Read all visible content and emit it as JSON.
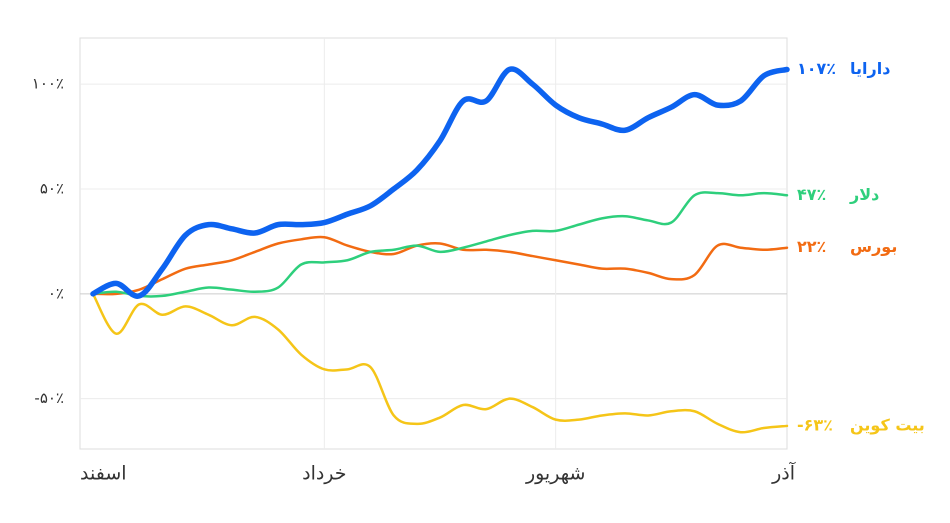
{
  "chart_data": {
    "type": "line",
    "categories": [
      "اسفند",
      null,
      null,
      null,
      null,
      null,
      null,
      null,
      null,
      null,
      "خرداد",
      null,
      null,
      null,
      null,
      null,
      null,
      null,
      null,
      null,
      "شهریور",
      null,
      null,
      null,
      null,
      null,
      null,
      null,
      null,
      null,
      "آذر"
    ],
    "series": [
      {
        "name": "دارایا",
        "color": "#0d63f0",
        "values": [
          0,
          5,
          -1,
          12,
          28,
          33,
          31,
          29,
          33,
          33,
          34,
          38,
          42,
          50,
          59,
          73,
          92,
          92,
          107,
          100,
          90,
          84,
          81,
          78,
          84,
          89,
          95,
          90,
          92,
          104,
          107
        ],
        "value_labels": [
          null,
          null,
          null,
          null,
          null,
          null,
          null,
          null,
          null,
          null,
          null,
          null,
          null,
          null,
          null,
          null,
          null,
          null,
          null,
          null,
          null,
          null,
          null,
          null,
          null,
          null,
          null,
          null,
          null,
          null,
          "۱۰۷٪"
        ]
      },
      {
        "name": "دلار",
        "color": "#2ecf7c",
        "values": [
          0,
          1,
          -1,
          -1,
          1,
          3,
          2,
          1,
          3,
          14,
          15,
          16,
          20,
          21,
          23,
          20,
          22,
          25,
          28,
          30,
          30,
          33,
          36,
          37,
          35,
          34,
          47,
          48,
          47,
          48,
          47
        ],
        "value_labels": [
          null,
          null,
          null,
          null,
          null,
          null,
          null,
          null,
          null,
          null,
          null,
          null,
          null,
          null,
          null,
          null,
          null,
          null,
          null,
          null,
          null,
          null,
          null,
          null,
          null,
          null,
          null,
          null,
          null,
          null,
          "۴۷٪"
        ]
      },
      {
        "name": "بورس",
        "color": "#f26b12",
        "values": [
          0,
          0,
          2,
          7,
          12,
          14,
          16,
          20,
          24,
          26,
          27,
          23,
          20,
          19,
          23,
          24,
          21,
          21,
          20,
          18,
          16,
          14,
          12,
          12,
          10,
          7,
          9,
          23,
          22,
          21,
          22
        ],
        "value_labels": [
          null,
          null,
          null,
          null,
          null,
          null,
          null,
          null,
          null,
          null,
          null,
          null,
          null,
          null,
          null,
          null,
          null,
          null,
          null,
          null,
          null,
          null,
          null,
          null,
          null,
          null,
          null,
          null,
          null,
          null,
          "۲۲٪"
        ]
      },
      {
        "name": "بیت کوین",
        "color": "#f5c518",
        "values": [
          0,
          -19,
          -5,
          -10,
          -6,
          -10,
          -15,
          -11,
          -17,
          -29,
          -36,
          -36,
          -35,
          -58,
          -62,
          -59,
          -53,
          -55,
          -50,
          -54,
          -60,
          -60,
          -58,
          -57,
          -58,
          -56,
          -56,
          -62,
          -66,
          -64,
          -63
        ],
        "value_labels": [
          null,
          null,
          null,
          null,
          null,
          null,
          null,
          null,
          null,
          null,
          null,
          null,
          null,
          null,
          null,
          null,
          null,
          null,
          null,
          null,
          null,
          null,
          null,
          null,
          null,
          null,
          null,
          null,
          null,
          null,
          "-۶۳٪"
        ]
      }
    ],
    "ylim": [
      -74,
      122
    ],
    "yticks": [
      {
        "value": -50,
        "label": "-۵۰٪"
      },
      {
        "value": 0,
        "label": "۰٪"
      },
      {
        "value": 50,
        "label": "۵۰٪"
      },
      {
        "value": 100,
        "label": "۱۰۰٪"
      }
    ],
    "grid": true
  }
}
